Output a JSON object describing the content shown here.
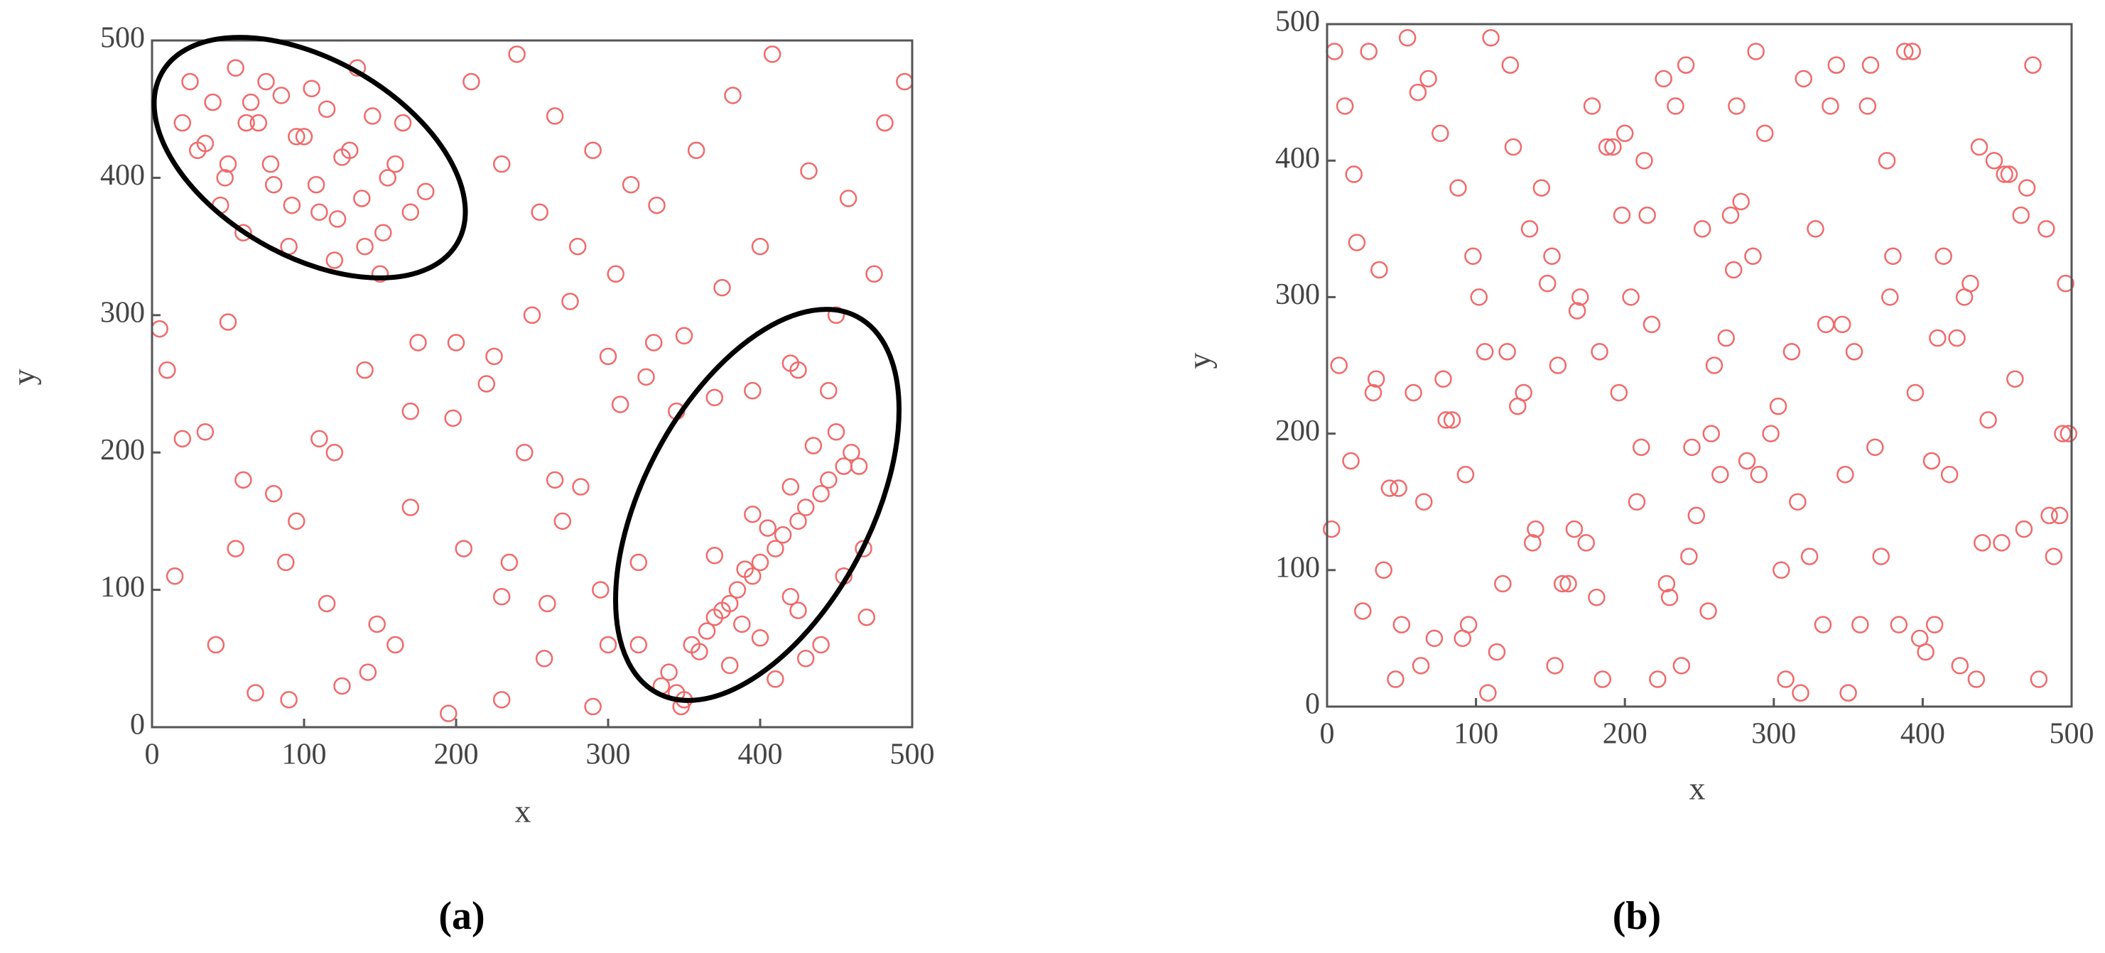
{
  "chart_data": [
    {
      "type": "scatter",
      "caption": "(a)",
      "xlabel": "x",
      "ylabel": "y",
      "color": "#f06a6a",
      "xlim": [
        0,
        500
      ],
      "ylim": [
        0,
        500
      ],
      "xticks": [
        0,
        100,
        200,
        300,
        400,
        500
      ],
      "yticks": [
        0,
        100,
        200,
        300,
        400,
        500
      ],
      "x": [
        25,
        40,
        55,
        70,
        85,
        100,
        115,
        130,
        145,
        160,
        30,
        48,
        62,
        78,
        92,
        108,
        122,
        138,
        152,
        170,
        20,
        35,
        50,
        65,
        80,
        95,
        110,
        125,
        140,
        155,
        45,
        60,
        75,
        90,
        105,
        120,
        135,
        150,
        165,
        180,
        340,
        355,
        370,
        385,
        400,
        415,
        430,
        445,
        460,
        350,
        365,
        380,
        395,
        410,
        425,
        440,
        455,
        345,
        360,
        375,
        390,
        405,
        420,
        435,
        450,
        465,
        335,
        380,
        400,
        420,
        440,
        410,
        370,
        395,
        425,
        455,
        348,
        388,
        430,
        468,
        10,
        35,
        60,
        88,
        115,
        142,
        170,
        198,
        225,
        250,
        275,
        300,
        325,
        350,
        375,
        400,
        425,
        450,
        475,
        495,
        15,
        42,
        68,
        95,
        120,
        148,
        175,
        205,
        230,
        258,
        282,
        308,
        332,
        358,
        382,
        408,
        432,
        458,
        482,
        5,
        210,
        240,
        265,
        290,
        315,
        230,
        255,
        280,
        305,
        220,
        245,
        270,
        295,
        320,
        345,
        370,
        395,
        420,
        445,
        470,
        50,
        80,
        110,
        140,
        170,
        200,
        230,
        260,
        290,
        320,
        20,
        55,
        90,
        125,
        160,
        195,
        235,
        265,
        300,
        330
      ],
      "y": [
        470,
        455,
        480,
        440,
        460,
        430,
        450,
        420,
        445,
        410,
        420,
        400,
        440,
        410,
        380,
        395,
        370,
        385,
        360,
        375,
        440,
        425,
        410,
        455,
        395,
        430,
        375,
        415,
        350,
        400,
        380,
        360,
        470,
        350,
        465,
        340,
        480,
        330,
        440,
        390,
        40,
        60,
        80,
        100,
        120,
        140,
        160,
        180,
        200,
        20,
        70,
        90,
        110,
        130,
        150,
        170,
        190,
        25,
        55,
        85,
        115,
        145,
        175,
        205,
        215,
        190,
        30,
        45,
        65,
        95,
        60,
        35,
        125,
        155,
        85,
        110,
        15,
        75,
        50,
        130,
        260,
        215,
        180,
        120,
        90,
        40,
        160,
        225,
        270,
        300,
        310,
        270,
        255,
        285,
        320,
        350,
        260,
        300,
        330,
        470,
        110,
        60,
        25,
        150,
        200,
        75,
        280,
        130,
        95,
        50,
        175,
        235,
        380,
        420,
        460,
        490,
        405,
        385,
        440,
        290,
        470,
        490,
        445,
        420,
        395,
        410,
        375,
        350,
        330,
        250,
        200,
        150,
        100,
        60,
        230,
        240,
        245,
        265,
        245,
        80,
        295,
        170,
        210,
        260,
        230,
        280,
        20,
        90,
        15,
        120,
        210,
        130,
        20,
        30,
        60,
        10,
        120,
        180,
        60,
        280
      ]
    },
    {
      "type": "scatter",
      "caption": "(b)",
      "xlabel": "x",
      "ylabel": "y",
      "color": "#f06a6a",
      "xlim": [
        0,
        500
      ],
      "ylim": [
        0,
        500
      ],
      "xticks": [
        0,
        100,
        200,
        300,
        400,
        500
      ],
      "yticks": [
        0,
        100,
        200,
        300,
        400,
        500
      ],
      "x": [
        5,
        35,
        65,
        95,
        125,
        155,
        185,
        215,
        245,
        275,
        305,
        335,
        365,
        395,
        425,
        455,
        485,
        20,
        50,
        80,
        110,
        140,
        170,
        200,
        230,
        260,
        290,
        320,
        350,
        380,
        410,
        440,
        470,
        498,
        12,
        42,
        72,
        102,
        132,
        162,
        192,
        222,
        252,
        282,
        312,
        342,
        372,
        402,
        432,
        462,
        492,
        28,
        58,
        88,
        118,
        148,
        178,
        208,
        238,
        268,
        298,
        328,
        358,
        388,
        418,
        448,
        478,
        8,
        38,
        68,
        98,
        128,
        158,
        188,
        218,
        248,
        278,
        308,
        338,
        368,
        398,
        428,
        458,
        488,
        16,
        46,
        76,
        106,
        136,
        166,
        196,
        226,
        256,
        286,
        316,
        346,
        376,
        406,
        436,
        466,
        496,
        24,
        54,
        84,
        114,
        144,
        174,
        204,
        234,
        264,
        294,
        324,
        354,
        384,
        414,
        444,
        474,
        3,
        33,
        63,
        93,
        123,
        153,
        183,
        213,
        243,
        273,
        303,
        333,
        363,
        393,
        423,
        453,
        483,
        18,
        48,
        78,
        108,
        138,
        168,
        198,
        228,
        258,
        288,
        318,
        348,
        378,
        408,
        438,
        468,
        494,
        31,
        61,
        91,
        121,
        151,
        181,
        211,
        241,
        271
      ],
      "y": [
        480,
        320,
        150,
        60,
        410,
        250,
        20,
        360,
        190,
        440,
        100,
        280,
        470,
        230,
        30,
        390,
        140,
        340,
        60,
        210,
        490,
        130,
        300,
        420,
        80,
        250,
        170,
        460,
        10,
        330,
        270,
        120,
        380,
        200,
        440,
        160,
        50,
        300,
        230,
        90,
        410,
        20,
        350,
        180,
        260,
        470,
        110,
        40,
        310,
        240,
        140,
        480,
        230,
        380,
        90,
        310,
        440,
        150,
        30,
        270,
        200,
        350,
        60,
        480,
        170,
        400,
        20,
        250,
        100,
        460,
        330,
        220,
        90,
        410,
        280,
        140,
        370,
        20,
        440,
        190,
        50,
        300,
        390,
        110,
        180,
        20,
        420,
        260,
        350,
        130,
        230,
        460,
        70,
        330,
        150,
        280,
        400,
        180,
        20,
        360,
        310,
        70,
        490,
        210,
        40,
        380,
        120,
        300,
        440,
        170,
        420,
        110,
        260,
        60,
        330,
        210,
        470,
        130,
        240,
        30,
        170,
        470,
        30,
        260,
        400,
        110,
        320,
        220,
        60,
        440,
        480,
        270,
        120,
        350,
        390,
        160,
        240,
        10,
        120,
        290,
        360,
        90,
        200,
        480,
        10,
        170,
        300,
        60,
        410,
        130,
        200,
        230,
        450,
        50,
        260,
        330,
        80,
        190,
        470,
        360
      ]
    }
  ]
}
